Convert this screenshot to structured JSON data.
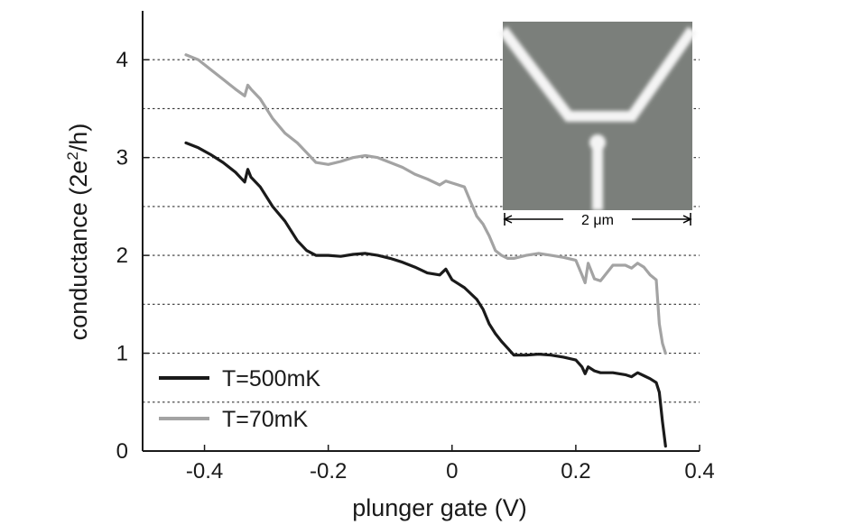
{
  "chart_data": {
    "type": "line",
    "xlabel": "plunger gate (V)",
    "ylabel_main": "conductance (2e",
    "ylabel_sup": "2",
    "ylabel_tail": "/h)",
    "xlim": [
      -0.5,
      0.4
    ],
    "ylim": [
      0,
      4.5
    ],
    "x_ticks": [
      -0.4,
      -0.2,
      0,
      0.2,
      0.4
    ],
    "x_tick_labels": [
      "-0.4",
      "-0.2",
      "0",
      "0.2",
      "0.4"
    ],
    "y_ticks": [
      0,
      1,
      2,
      3,
      4
    ],
    "y_tick_labels": [
      "0",
      "1",
      "2",
      "3",
      "4"
    ],
    "grid": {
      "axis": "y",
      "style": "dotted",
      "values": [
        0.5,
        1,
        1.5,
        2,
        2.5,
        3,
        3.5,
        4
      ]
    },
    "legend": {
      "placement": "bottom-left"
    },
    "series": [
      {
        "name": "T=500mK",
        "color": "#1a1a1a",
        "x": [
          -0.43,
          -0.41,
          -0.39,
          -0.37,
          -0.35,
          -0.335,
          -0.33,
          -0.325,
          -0.31,
          -0.29,
          -0.27,
          -0.25,
          -0.235,
          -0.22,
          -0.2,
          -0.18,
          -0.16,
          -0.14,
          -0.12,
          -0.1,
          -0.08,
          -0.06,
          -0.04,
          -0.02,
          -0.01,
          0.0,
          0.02,
          0.04,
          0.05,
          0.06,
          0.07,
          0.08,
          0.09,
          0.1,
          0.12,
          0.14,
          0.16,
          0.18,
          0.2,
          0.21,
          0.215,
          0.22,
          0.23,
          0.24,
          0.26,
          0.28,
          0.29,
          0.3,
          0.31,
          0.32,
          0.33,
          0.335,
          0.34,
          0.345
        ],
        "y": [
          3.15,
          3.1,
          3.03,
          2.95,
          2.85,
          2.75,
          2.88,
          2.8,
          2.7,
          2.5,
          2.35,
          2.15,
          2.05,
          2.0,
          2.0,
          1.99,
          2.01,
          2.02,
          2.0,
          1.97,
          1.93,
          1.88,
          1.82,
          1.8,
          1.86,
          1.75,
          1.67,
          1.55,
          1.45,
          1.3,
          1.2,
          1.12,
          1.05,
          0.98,
          0.98,
          0.99,
          0.98,
          0.96,
          0.93,
          0.86,
          0.79,
          0.86,
          0.82,
          0.8,
          0.8,
          0.78,
          0.76,
          0.8,
          0.77,
          0.74,
          0.7,
          0.6,
          0.3,
          0.05
        ]
      },
      {
        "name": "T=70mK",
        "color": "#a3a3a3",
        "x": [
          -0.43,
          -0.41,
          -0.39,
          -0.37,
          -0.35,
          -0.335,
          -0.33,
          -0.325,
          -0.31,
          -0.29,
          -0.27,
          -0.25,
          -0.235,
          -0.22,
          -0.2,
          -0.18,
          -0.16,
          -0.14,
          -0.12,
          -0.1,
          -0.08,
          -0.06,
          -0.04,
          -0.02,
          -0.01,
          0.0,
          0.02,
          0.03,
          0.04,
          0.05,
          0.06,
          0.07,
          0.08,
          0.09,
          0.1,
          0.12,
          0.14,
          0.16,
          0.18,
          0.2,
          0.21,
          0.215,
          0.22,
          0.23,
          0.24,
          0.26,
          0.28,
          0.29,
          0.3,
          0.31,
          0.32,
          0.33,
          0.335,
          0.34,
          0.345
        ],
        "y": [
          4.05,
          4.0,
          3.9,
          3.8,
          3.7,
          3.63,
          3.74,
          3.7,
          3.6,
          3.4,
          3.25,
          3.15,
          3.05,
          2.95,
          2.93,
          2.96,
          3.0,
          3.02,
          3.0,
          2.95,
          2.9,
          2.83,
          2.78,
          2.72,
          2.76,
          2.74,
          2.7,
          2.55,
          2.4,
          2.32,
          2.2,
          2.05,
          2.0,
          1.97,
          1.97,
          2.0,
          2.02,
          2.0,
          1.98,
          1.95,
          1.8,
          1.72,
          1.92,
          1.76,
          1.74,
          1.9,
          1.9,
          1.87,
          1.92,
          1.88,
          1.8,
          1.75,
          1.3,
          1.1,
          1.0
        ]
      }
    ],
    "inset": {
      "scale_label": "2 μm"
    }
  }
}
